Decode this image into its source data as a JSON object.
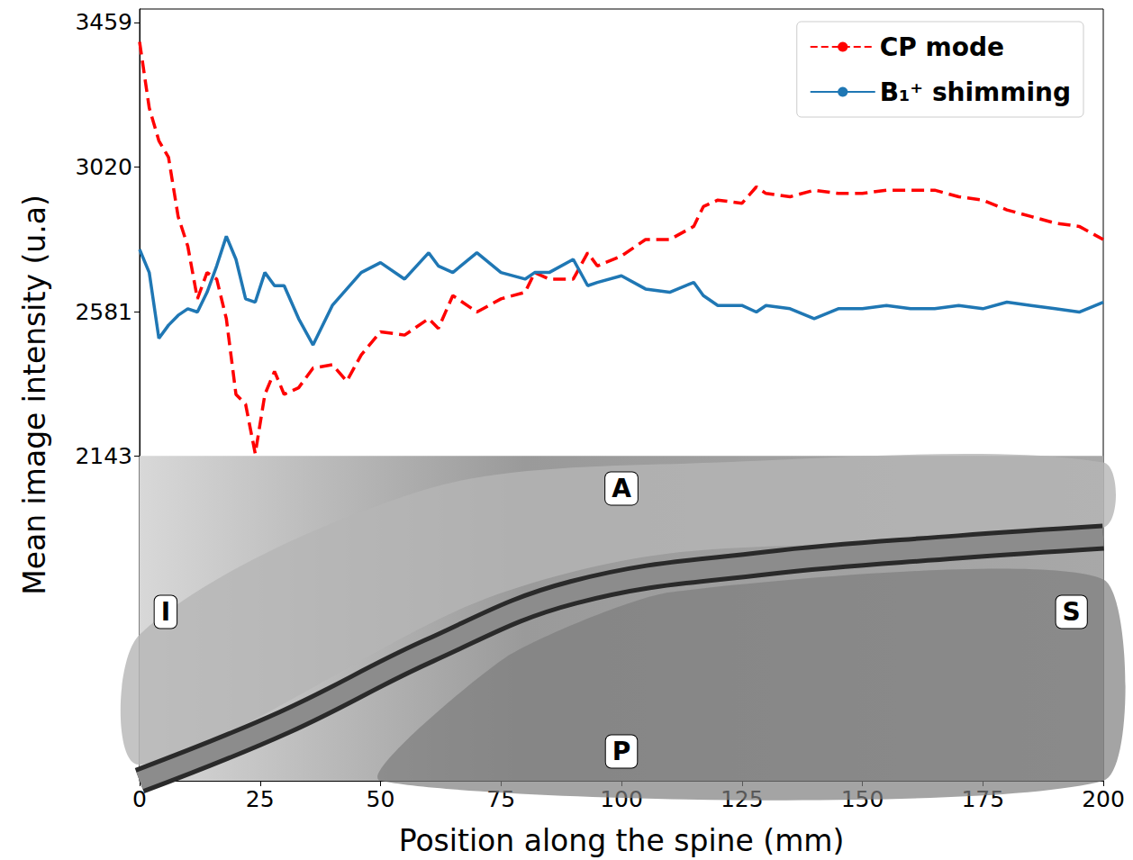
{
  "chart_data": {
    "type": "line",
    "x_label": "Position along the spine (mm)",
    "y_label": "Mean image intensity (u.a)",
    "x": [
      0,
      2,
      4,
      6,
      8,
      10,
      12,
      14,
      16,
      18,
      20,
      22,
      24,
      26,
      28,
      30,
      33,
      36,
      40,
      43,
      46,
      50,
      55,
      60,
      62,
      65,
      70,
      75,
      80,
      82,
      85,
      90,
      93,
      95,
      100,
      105,
      110,
      115,
      117,
      120,
      125,
      128,
      130,
      135,
      140,
      145,
      150,
      155,
      160,
      165,
      170,
      175,
      180,
      185,
      190,
      195,
      200
    ],
    "series": [
      {
        "name": "CP mode",
        "color": "#ff0000",
        "line_style": "dashed",
        "values": [
          3400,
          3200,
          3100,
          3050,
          2870,
          2780,
          2620,
          2700,
          2680,
          2560,
          2330,
          2300,
          2150,
          2330,
          2400,
          2330,
          2350,
          2410,
          2420,
          2370,
          2450,
          2520,
          2510,
          2560,
          2530,
          2630,
          2580,
          2620,
          2640,
          2700,
          2680,
          2680,
          2760,
          2720,
          2750,
          2800,
          2800,
          2840,
          2900,
          2920,
          2910,
          2960,
          2940,
          2930,
          2950,
          2940,
          2940,
          2950,
          2950,
          2950,
          2930,
          2920,
          2890,
          2870,
          2850,
          2840,
          2800
        ]
      },
      {
        "name": "B₁⁺ shimming",
        "color": "#1f77b4",
        "line_style": "solid",
        "values": [
          2770,
          2700,
          2500,
          2540,
          2570,
          2590,
          2580,
          2640,
          2720,
          2810,
          2740,
          2620,
          2610,
          2700,
          2660,
          2660,
          2560,
          2480,
          2600,
          2650,
          2700,
          2730,
          2680,
          2760,
          2720,
          2700,
          2760,
          2700,
          2680,
          2700,
          2700,
          2740,
          2660,
          2670,
          2690,
          2650,
          2640,
          2670,
          2630,
          2600,
          2600,
          2580,
          2600,
          2590,
          2560,
          2590,
          2590,
          2600,
          2590,
          2590,
          2600,
          2590,
          2610,
          2600,
          2590,
          2580,
          2610
        ]
      }
    ],
    "xlim": [
      0,
      200
    ],
    "xticks": [
      0,
      25,
      50,
      75,
      100,
      125,
      150,
      175,
      200
    ],
    "ylim": [
      1157,
      3500
    ],
    "yticks": [
      2143,
      2581,
      3020,
      3459
    ],
    "legend": "upper right",
    "grid": false,
    "annotations": [
      "A",
      "I",
      "S",
      "P"
    ]
  }
}
